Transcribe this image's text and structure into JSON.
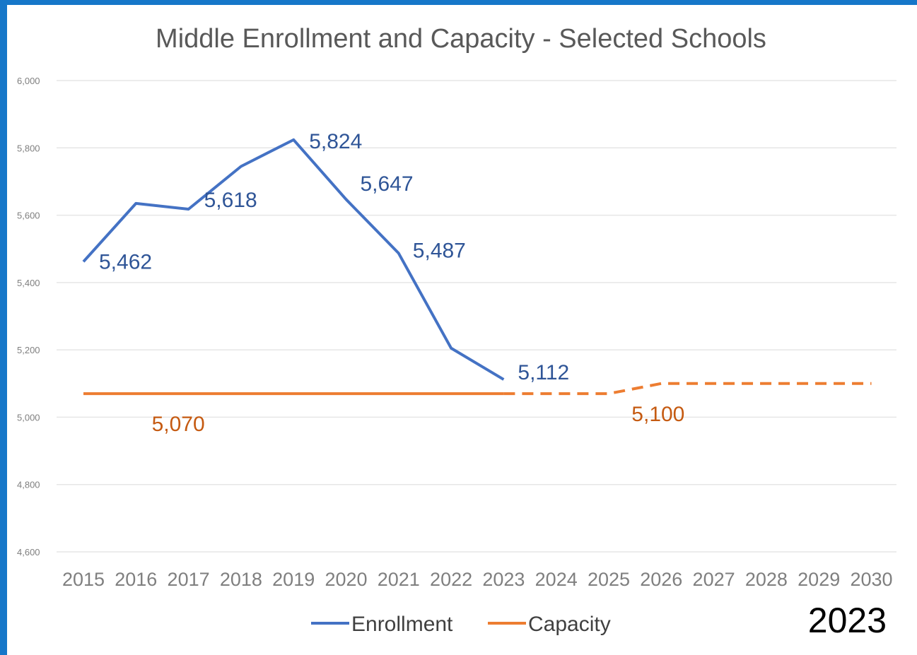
{
  "chart_data": {
    "type": "line",
    "title": "Middle Enrollment and Capacity  - Selected Schools",
    "badge": "2023",
    "x": [
      "2015",
      "2016",
      "2017",
      "2018",
      "2019",
      "2020",
      "2021",
      "2022",
      "2023",
      "2024",
      "2025",
      "2026",
      "2027",
      "2028",
      "2029",
      "2030"
    ],
    "y_ticks": [
      "6,000",
      "5,800",
      "5,600",
      "5,400",
      "5,200",
      "5,000",
      "4,800",
      "4,600"
    ],
    "ylim": [
      4600,
      6000
    ],
    "grid": true,
    "legend_position": "bottom",
    "series": [
      {
        "name": "Enrollment",
        "color": "#4472c4",
        "style": "solid",
        "values": [
          5462,
          5635,
          5618,
          5745,
          5824,
          5647,
          5487,
          5205,
          5112,
          null,
          null,
          null,
          null,
          null,
          null,
          null
        ],
        "labels": [
          {
            "text": "5,462",
            "index": 0
          },
          {
            "text": "5,618",
            "index": 2
          },
          {
            "text": "5,824",
            "index": 4
          },
          {
            "text": "5,647",
            "index": 5
          },
          {
            "text": "5,487",
            "index": 6
          },
          {
            "text": "5,112",
            "index": 8
          }
        ]
      },
      {
        "name": "Capacity",
        "color": "#ed7d31",
        "style": "solid-then-dashed",
        "dash_from_index": 8,
        "values": [
          5070,
          5070,
          5070,
          5070,
          5070,
          5070,
          5070,
          5070,
          5070,
          5070,
          5070,
          5100,
          5100,
          5100,
          5100,
          5100
        ],
        "labels": [
          {
            "text": "5,070",
            "index": 2
          },
          {
            "text": "5,100",
            "index": 11
          }
        ]
      }
    ]
  }
}
